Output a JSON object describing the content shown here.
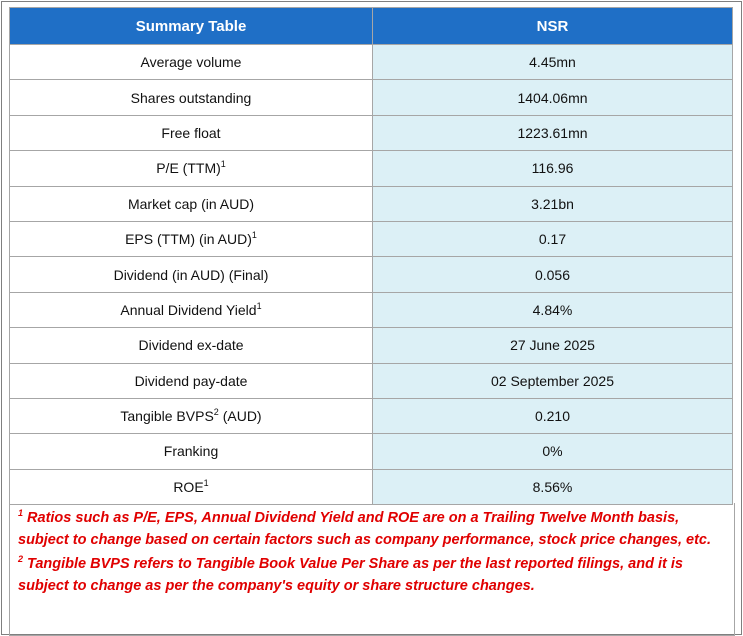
{
  "header": {
    "left": "Summary Table",
    "right": "NSR"
  },
  "rows": [
    {
      "label": "Average volume",
      "value": "4.45mn"
    },
    {
      "label": "Shares outstanding",
      "value": "1404.06mn"
    },
    {
      "label": "Free float",
      "value": "1223.61mn"
    },
    {
      "label": "P/E (TTM)",
      "sup": "1",
      "value": "116.96"
    },
    {
      "label": "Market cap (in AUD)",
      "value": "3.21bn"
    },
    {
      "label": "EPS (TTM) (in AUD)",
      "sup": "1",
      "value": "0.17"
    },
    {
      "label": "Dividend (in AUD) (Final)",
      "value": "0.056"
    },
    {
      "label": "Annual Dividend Yield",
      "sup": "1",
      "value": "4.84%"
    },
    {
      "label": "Dividend ex-date",
      "value": "27 June 2025"
    },
    {
      "label": "Dividend pay-date",
      "value": "02 September 2025"
    },
    {
      "label": "Tangible BVPS",
      "sup": "2",
      "after": " (AUD)",
      "value": "0.210"
    },
    {
      "label": "Franking",
      "value": "0%"
    },
    {
      "label": "ROE",
      "sup": "1",
      "value": "8.56%"
    }
  ],
  "footnotes": [
    {
      "marker": "1",
      "text": " Ratios such as P/E, EPS, Annual Dividend Yield and ROE are on a Trailing Twelve Month basis, subject to change based on certain factors such as company performance, stock price changes, etc."
    },
    {
      "marker": "2",
      "text": " Tangible BVPS refers to Tangible Book Value Per Share as per the last reported filings, and it is subject to change as per the company's equity or share structure changes."
    }
  ]
}
